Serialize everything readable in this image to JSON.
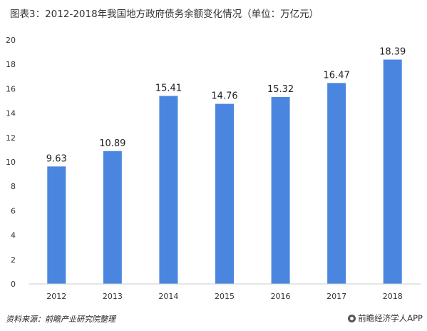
{
  "header": {
    "title": "图表3：2012-2018年我国地方政府债务余额变化情况（单位：万亿元）"
  },
  "footer": {
    "source": "资料来源：前瞻产业研究院整理",
    "brand": "前瞻经济学人APP"
  },
  "colors": {
    "bar": "#4a86e0",
    "axis": "#cccccc"
  },
  "chart_data": {
    "type": "bar",
    "title": "图表3：2012-2018年我国地方政府债务余额变化情况（单位：万亿元）",
    "xlabel": "",
    "ylabel": "",
    "categories": [
      "2012",
      "2013",
      "2014",
      "2015",
      "2016",
      "2017",
      "2018"
    ],
    "values": [
      9.63,
      10.89,
      15.41,
      14.76,
      15.32,
      16.47,
      18.39
    ],
    "value_labels": [
      "9.63",
      "10.89",
      "15.41",
      "14.76",
      "15.32",
      "16.47",
      "18.39"
    ],
    "ylim": [
      0,
      20
    ],
    "yticks": [
      "0",
      "2",
      "4",
      "6",
      "8",
      "10",
      "12",
      "14",
      "16",
      "18",
      "20"
    ],
    "grid": false,
    "legend": "none"
  }
}
